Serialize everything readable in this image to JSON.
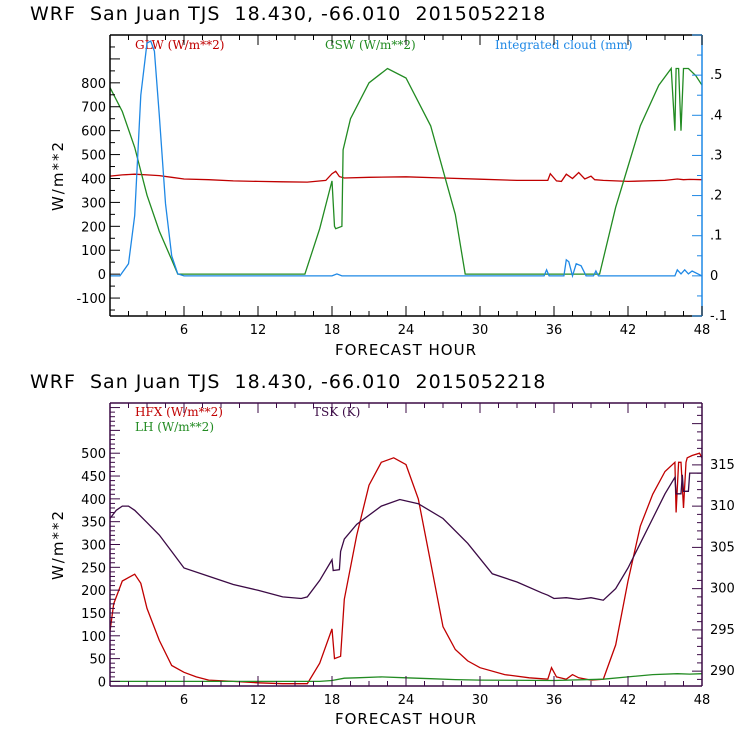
{
  "chart_data": [
    {
      "type": "line",
      "title": "WRF  San Juan TJS  18.430, -66.010  2015052218",
      "xlabel": "FORECAST HOUR",
      "ylabel": "W/m**2",
      "xlim": [
        0,
        48
      ],
      "ylim": [
        -175,
        1000
      ],
      "y2lim": [
        -0.1,
        0.6
      ],
      "xticks": [
        "6",
        "12",
        "18",
        "24",
        "30",
        "36",
        "42",
        "48"
      ],
      "yticks": [
        "-100",
        "0",
        "100",
        "200",
        "300",
        "400",
        "500",
        "600",
        "700",
        "800"
      ],
      "y2ticks": [
        "-.1",
        "0",
        ".1",
        ".2",
        ".3",
        ".4",
        ".5"
      ],
      "frame_color": "#1e88e5",
      "series": [
        {
          "name": "GLW (W/m**2)",
          "axis": "left",
          "color": "#c00000",
          "x": [
            0,
            1,
            2,
            3,
            4,
            5,
            6,
            8,
            10,
            12,
            14,
            16,
            17.5,
            18,
            18.3,
            18.6,
            19,
            21,
            24,
            27,
            30,
            33,
            35.5,
            35.7,
            36.2,
            36.6,
            37,
            37.5,
            38,
            38.5,
            39,
            39.3,
            40,
            42,
            45,
            46,
            46.5,
            47,
            48
          ],
          "values": [
            410,
            415,
            418,
            415,
            412,
            405,
            398,
            395,
            390,
            388,
            386,
            385,
            392,
            420,
            430,
            408,
            402,
            405,
            407,
            402,
            397,
            392,
            392,
            420,
            390,
            388,
            418,
            400,
            425,
            398,
            410,
            395,
            392,
            388,
            392,
            398,
            395,
            396,
            395
          ]
        },
        {
          "name": "GSW (W/m**2)",
          "axis": "left",
          "color": "#228b22",
          "x": [
            0,
            1,
            2,
            3,
            4,
            5,
            5.5,
            15.8,
            17,
            18,
            18.2,
            18.3,
            18.8,
            18.9,
            19.5,
            21,
            22.5,
            24,
            26,
            28,
            28.8,
            39.7,
            41,
            42,
            43,
            44.5,
            45.5,
            45.8,
            45.9,
            46.1,
            46.3,
            46.5,
            46.7,
            46.9,
            47.5,
            48
          ],
          "values": [
            780,
            680,
            530,
            330,
            180,
            60,
            0,
            0,
            190,
            390,
            200,
            190,
            200,
            520,
            650,
            800,
            860,
            820,
            620,
            250,
            0,
            0,
            280,
            450,
            620,
            790,
            860,
            600,
            860,
            860,
            600,
            860,
            860,
            860,
            830,
            790
          ]
        },
        {
          "name": "Integrated cloud (mm)",
          "axis": "right",
          "color": "#1e88e5",
          "x": [
            0,
            0.8,
            1.5,
            2,
            2.5,
            3,
            3.3,
            3.6,
            4,
            4.5,
            5,
            5.5,
            6,
            18,
            18.4,
            18.8,
            35.2,
            35.4,
            35.6,
            36.8,
            37,
            37.2,
            37.5,
            37.8,
            38.2,
            38.6,
            39.2,
            39.4,
            39.6,
            45.8,
            46,
            46.3,
            46.6,
            46.9,
            47.2,
            48
          ],
          "values": [
            0,
            0,
            0.03,
            0.15,
            0.45,
            0.58,
            0.585,
            0.56,
            0.4,
            0.18,
            0.05,
            0.005,
            0,
            0,
            0.005,
            0,
            0,
            0.015,
            0,
            0,
            0.04,
            0.035,
            0,
            0.03,
            0.025,
            0,
            0,
            0.012,
            0,
            0,
            0.015,
            0.005,
            0.015,
            0.005,
            0.012,
            0
          ]
        }
      ]
    },
    {
      "type": "line",
      "title": "WRF  San Juan TJS  18.430, -66.010  2015052218",
      "xlabel": "FORECAST HOUR",
      "ylabel": "W/m**2",
      "xlim": [
        0,
        48
      ],
      "ylim": [
        -10,
        610
      ],
      "y2lim": [
        288.2,
        322.5
      ],
      "xticks": [
        "6",
        "12",
        "18",
        "24",
        "30",
        "36",
        "42",
        "48"
      ],
      "yticks": [
        "0",
        "50",
        "100",
        "150",
        "200",
        "250",
        "300",
        "350",
        "400",
        "450",
        "500"
      ],
      "y2ticks": [
        "290",
        "295",
        "300",
        "305",
        "310",
        "315"
      ],
      "frame_color": "#3b0a45",
      "series": [
        {
          "name": "HFX (W/m**2)",
          "axis": "left",
          "color": "#c00000",
          "x": [
            0,
            0.3,
            1,
            2,
            2.5,
            3,
            4,
            5,
            6,
            7,
            8,
            10,
            12,
            14,
            16,
            17,
            18,
            18.2,
            18.7,
            19,
            20,
            21,
            22,
            23,
            24,
            25,
            26,
            27,
            28,
            29,
            30,
            32,
            34,
            35.5,
            35.8,
            36.2,
            37,
            37.5,
            38,
            39,
            40,
            41,
            42,
            43,
            44,
            45,
            45.8,
            45.9,
            46.1,
            46.3,
            46.5,
            46.7,
            46.8,
            47.2,
            47.8,
            48
          ],
          "values": [
            110,
            170,
            220,
            235,
            215,
            160,
            90,
            35,
            20,
            10,
            3,
            0,
            -3,
            -5,
            -5,
            40,
            115,
            50,
            55,
            180,
            320,
            430,
            480,
            490,
            475,
            400,
            260,
            120,
            70,
            45,
            30,
            15,
            8,
            5,
            30,
            10,
            5,
            15,
            8,
            3,
            5,
            80,
            220,
            340,
            410,
            460,
            480,
            370,
            480,
            480,
            380,
            480,
            490,
            495,
            500,
            490
          ]
        },
        {
          "name": "LH (W/m**2)",
          "axis": "left",
          "color": "#228b22",
          "x": [
            0,
            6,
            12,
            17,
            18,
            19,
            20,
            22,
            24,
            26,
            28,
            30,
            36,
            40,
            42,
            44,
            46,
            47,
            48
          ],
          "values": [
            0,
            0,
            0,
            0,
            2,
            7,
            8,
            10,
            8,
            6,
            4,
            3,
            2,
            5,
            10,
            15,
            17,
            16,
            17
          ]
        },
        {
          "name": "TSK (K)",
          "axis": "right",
          "color": "#3b0a45",
          "x": [
            0,
            0.5,
            1,
            1.5,
            2,
            3,
            4,
            5,
            6,
            8,
            10,
            12,
            14,
            15.5,
            16,
            17,
            18,
            18.1,
            18.6,
            18.7,
            19,
            20,
            22,
            23.5,
            25,
            27,
            29,
            31,
            33,
            35,
            35.5,
            36,
            37,
            38,
            39,
            40,
            41,
            42,
            43,
            44,
            45,
            45.8,
            45.9,
            46.3,
            46.4,
            46.5,
            46.9,
            47,
            48
          ],
          "values": [
            308.5,
            309.5,
            310,
            310,
            309.5,
            308,
            306.5,
            304.5,
            302.5,
            301.5,
            300.5,
            299.8,
            299,
            298.8,
            299,
            301,
            303.5,
            302.2,
            302.3,
            304.5,
            306,
            307.8,
            310,
            310.8,
            310.3,
            308.5,
            305.5,
            301.8,
            300.8,
            299.5,
            299.2,
            298.8,
            298.9,
            298.7,
            298.9,
            298.6,
            300,
            302.5,
            305.5,
            308.5,
            311.5,
            313.5,
            311.5,
            311.5,
            313.8,
            311.8,
            311.8,
            314,
            314
          ]
        }
      ]
    }
  ]
}
